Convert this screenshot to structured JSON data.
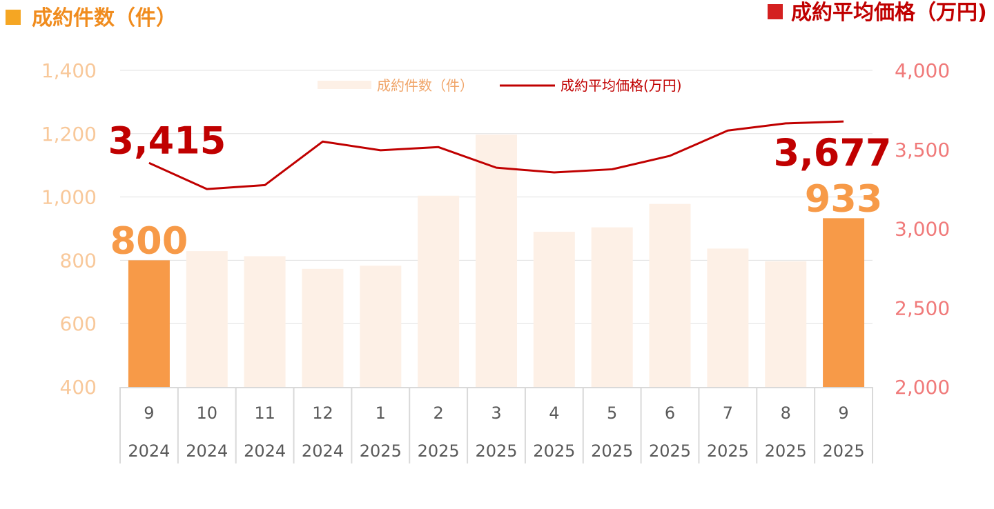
{
  "header": {
    "left_title": "成約件数（件）",
    "right_title": "成約平均価格（万円)"
  },
  "colors": {
    "bar_highlight": "#f79a48",
    "bar_faded": "#fdf0e6",
    "line": "#c00000",
    "left_axis_text": "#f8c89a",
    "right_axis_text": "#f07a7a",
    "left_header_square": "#f5a623",
    "left_header_text": "#f08c1e",
    "right_header_square": "#d42020",
    "right_header_text": "#c00000",
    "grid": "#e0e0e0",
    "legend_line_text": "#c00000",
    "legend_bar_text": "#f0a56a"
  },
  "legend": {
    "bar_label": "成約件数（件）",
    "line_label": "成約平均価格(万円)"
  },
  "chart_data": {
    "type": "bar",
    "categories": [
      "9",
      "10",
      "11",
      "12",
      "1",
      "2",
      "3",
      "4",
      "5",
      "6",
      "7",
      "8",
      "9"
    ],
    "years": [
      "2024",
      "2024",
      "2024",
      "2024",
      "2025",
      "2025",
      "2025",
      "2025",
      "2025",
      "2025",
      "2025",
      "2025",
      "2025"
    ],
    "highlighted_indices": [
      0,
      12
    ],
    "y_left": {
      "min": 400,
      "max": 1400,
      "ticks": [
        400,
        600,
        800,
        1000,
        1200,
        1400
      ],
      "tick_labels": [
        "400",
        "600",
        "800",
        "1,000",
        "1,200",
        "1,400"
      ]
    },
    "y_right": {
      "min": 2000,
      "max": 4000,
      "ticks": [
        2000,
        2500,
        3000,
        3500,
        4000
      ],
      "tick_labels": [
        "2,000",
        "2,500",
        "3,000",
        "3,500",
        "4,000"
      ]
    },
    "grid": true,
    "legend_position": "top-center",
    "series": [
      {
        "name": "成約件数（件）",
        "type": "bar",
        "axis": "left",
        "values": [
          800,
          829,
          813,
          773,
          783,
          1004,
          1197,
          890,
          904,
          978,
          837,
          797,
          933
        ]
      },
      {
        "name": "成約平均価格(万円)",
        "type": "line",
        "axis": "right",
        "values": [
          3415,
          3250,
          3275,
          3550,
          3495,
          3515,
          3385,
          3355,
          3375,
          3460,
          3620,
          3665,
          3677
        ]
      }
    ],
    "data_labels": [
      {
        "text": "3,415",
        "series": 1,
        "index": 0
      },
      {
        "text": "800",
        "series": 0,
        "index": 0
      },
      {
        "text": "3,677",
        "series": 1,
        "index": 12
      },
      {
        "text": "933",
        "series": 0,
        "index": 12
      }
    ]
  }
}
